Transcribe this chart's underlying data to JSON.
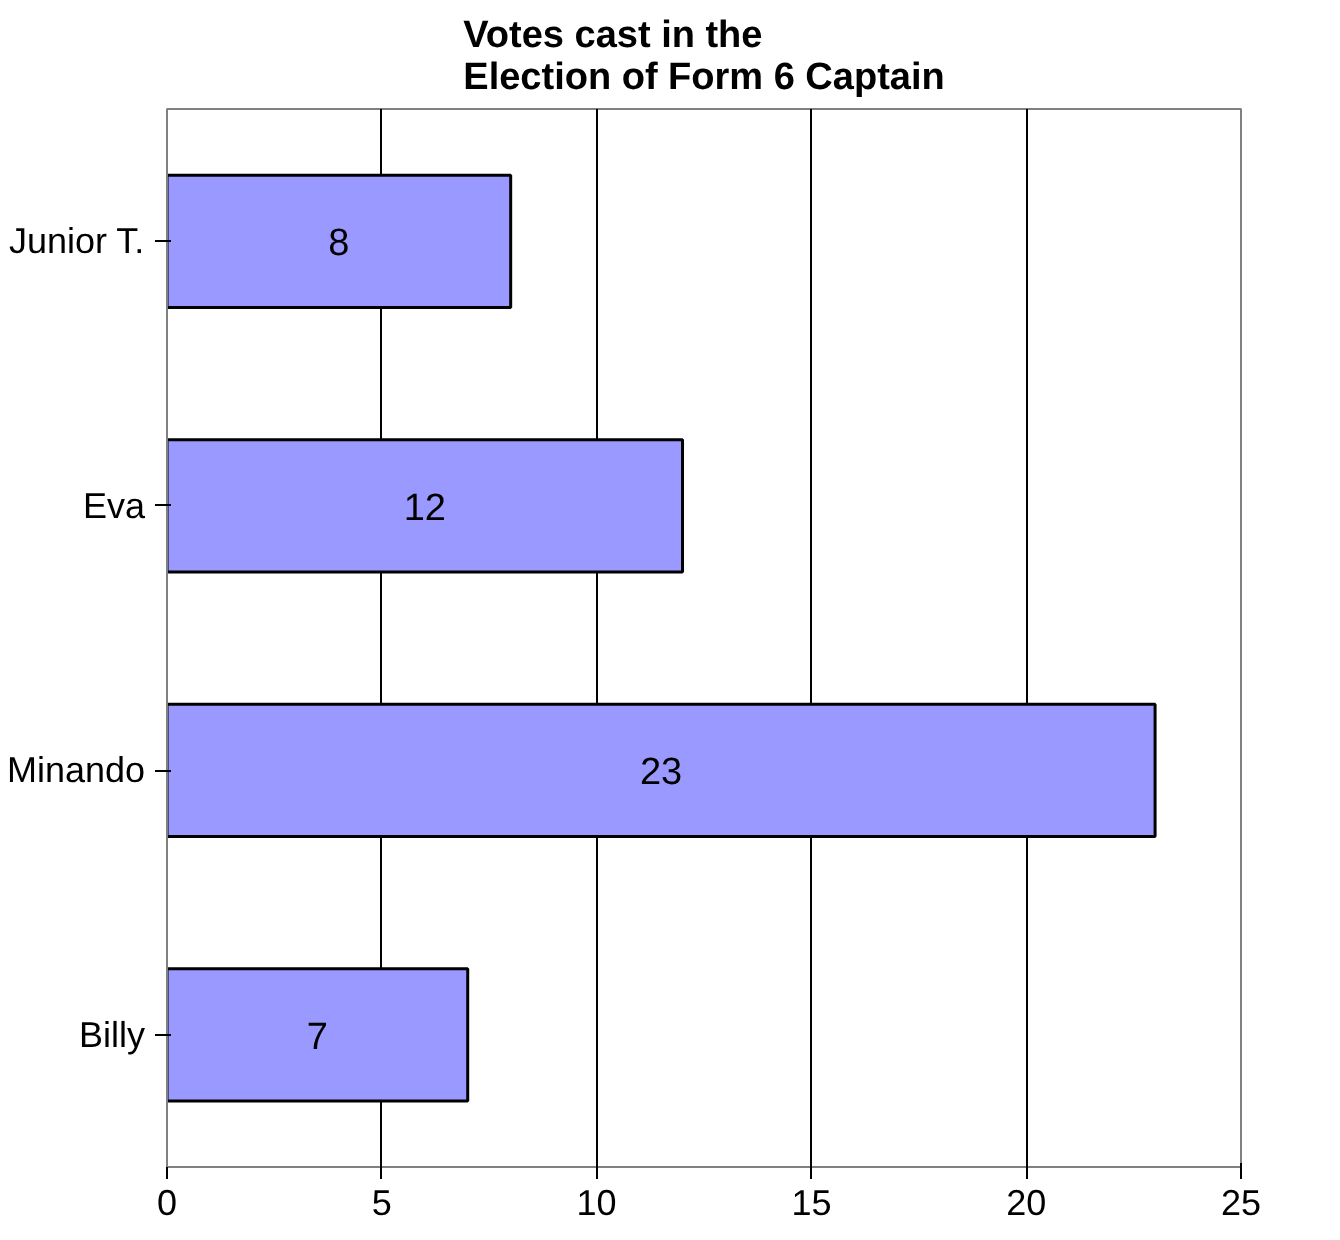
{
  "chart_data": {
    "type": "bar",
    "orientation": "horizontal",
    "title": "Votes cast in the Election of Form 6 Captain",
    "categories": [
      "Junior T.",
      "Eva",
      "Minando",
      "Billy"
    ],
    "values": [
      8,
      12,
      23,
      7
    ],
    "color": "#9999ff",
    "xlim": [
      0,
      25
    ],
    "xticks": [
      0,
      5,
      10,
      15,
      20,
      25
    ],
    "grid": "x",
    "data_labels": true
  }
}
